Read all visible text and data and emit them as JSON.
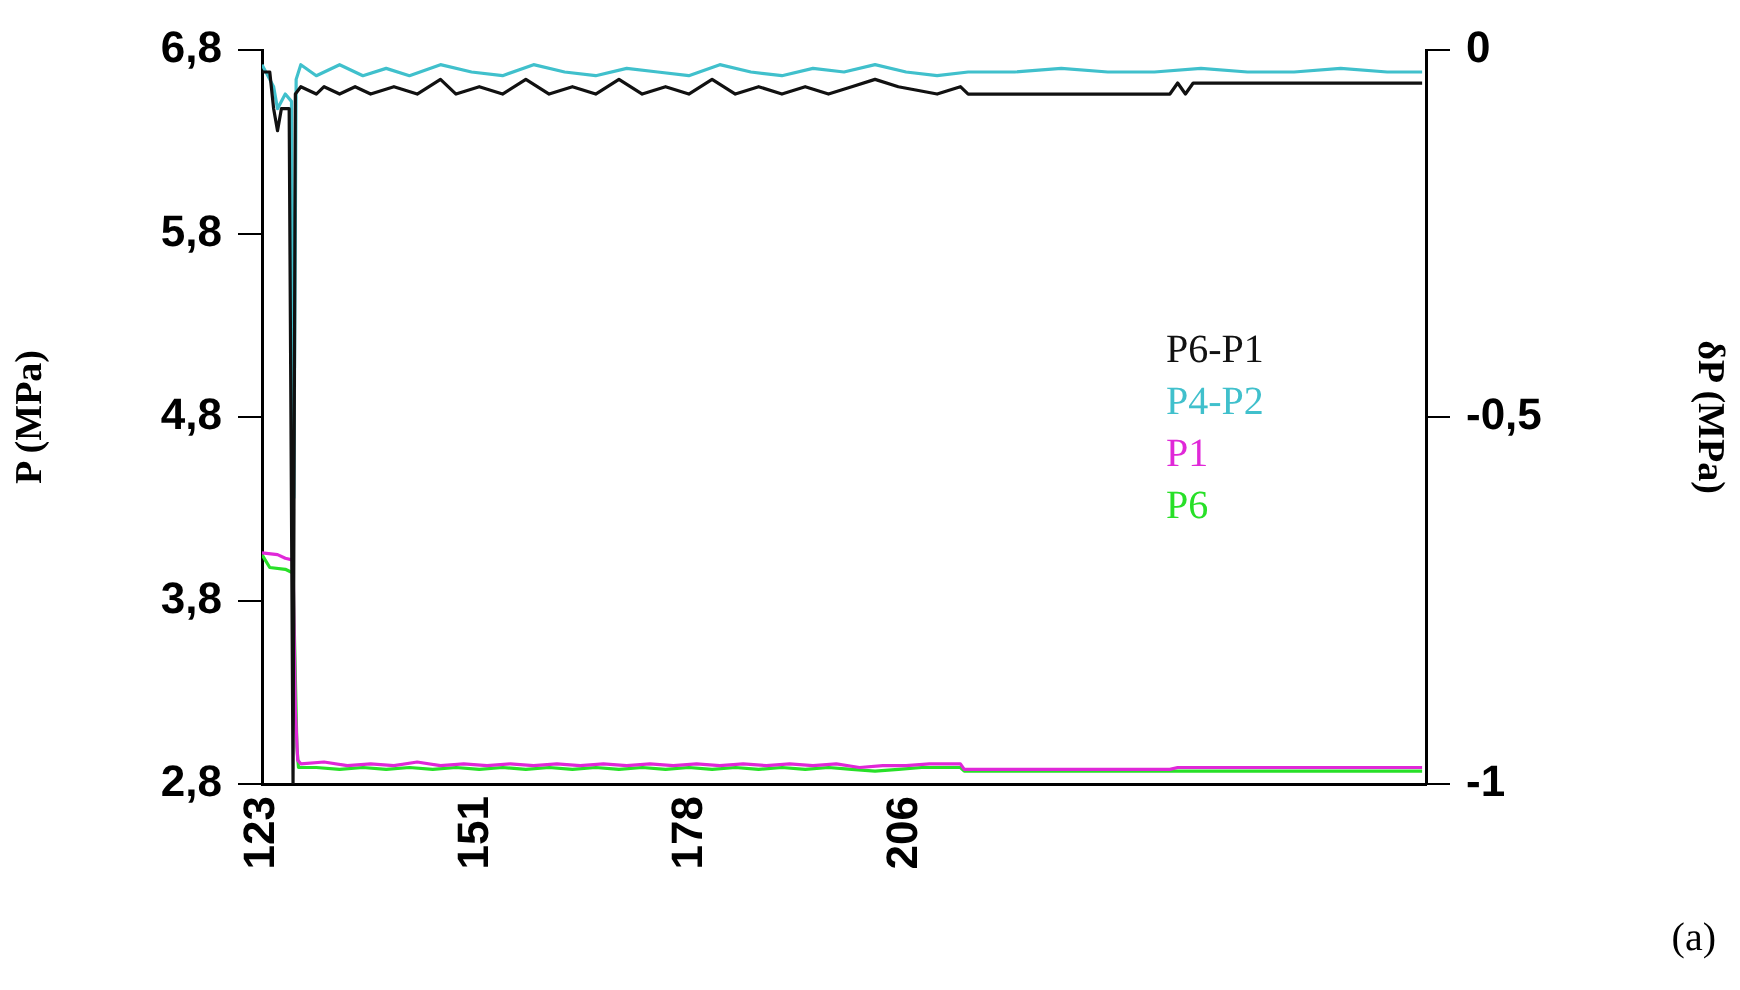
{
  "chart_data": {
    "type": "line",
    "ylabel": "P (MPa)",
    "y2label": "δP (MPa)",
    "xlim": [
      123,
      273
    ],
    "xticks": [
      123,
      {
        "value": 150.6,
        "label": "151"
      },
      {
        "value": 178.2,
        "label": "178"
      },
      {
        "value": 205.8,
        "label": "206"
      }
    ],
    "ylim": [
      2.8,
      6.8
    ],
    "yticks": [
      {
        "value": 2.8,
        "label": "2,8"
      },
      {
        "value": 3.8,
        "label": "3,8"
      },
      {
        "value": 4.8,
        "label": "4,8"
      },
      {
        "value": 5.8,
        "label": "5,8"
      },
      {
        "value": 6.8,
        "label": "6,8"
      }
    ],
    "y2lim": [
      -1,
      0
    ],
    "y2ticks": [
      -1,
      {
        "value": -0.5,
        "label": "-0,5"
      },
      0
    ],
    "grid": false,
    "legend": "right",
    "marker": "none",
    "line_style": "solid",
    "annotations": [
      "(a)"
    ],
    "series": [
      {
        "name": "P6-P1",
        "color": "#111111",
        "axis": "y2",
        "x": [
          123,
          124,
          124.5,
          125,
          125.5,
          126.5,
          127,
          127.3,
          128,
          130,
          131,
          133,
          135,
          137,
          140,
          143,
          146,
          148,
          151,
          154,
          157,
          160,
          163,
          166,
          169,
          172,
          175,
          178,
          181,
          184,
          187,
          190,
          193,
          196,
          199,
          202,
          205,
          210,
          213,
          214,
          240,
          241,
          242,
          243,
          272.5
        ],
        "values": [
          -0.03,
          -0.03,
          -0.08,
          -0.11,
          -0.08,
          -0.08,
          -1,
          -0.06,
          -0.05,
          -0.06,
          -0.05,
          -0.06,
          -0.05,
          -0.06,
          -0.05,
          -0.06,
          -0.04,
          -0.06,
          -0.05,
          -0.06,
          -0.04,
          -0.06,
          -0.05,
          -0.06,
          -0.04,
          -0.06,
          -0.05,
          -0.06,
          -0.04,
          -0.06,
          -0.05,
          -0.06,
          -0.05,
          -0.06,
          -0.05,
          -0.04,
          -0.05,
          -0.06,
          -0.05,
          -0.06,
          -0.06,
          -0.045,
          -0.06,
          -0.045,
          -0.045
        ]
      },
      {
        "name": "P4-P2",
        "color": "#40c0cc",
        "axis": "y2",
        "x": [
          123,
          124.5,
          125,
          126,
          126.8,
          127.1,
          127.4,
          128,
          130,
          133,
          136,
          139,
          142,
          146,
          150,
          154,
          158,
          162,
          166,
          170,
          174,
          178,
          182,
          186,
          190,
          194,
          198,
          202,
          206,
          210,
          214,
          220,
          226,
          232,
          238,
          244,
          250,
          256,
          262,
          268,
          272.5
        ],
        "values": [
          -0.02,
          -0.05,
          -0.08,
          -0.06,
          -0.07,
          -0.61,
          -0.04,
          -0.02,
          -0.035,
          -0.02,
          -0.035,
          -0.025,
          -0.035,
          -0.02,
          -0.03,
          -0.035,
          -0.02,
          -0.03,
          -0.035,
          -0.025,
          -0.03,
          -0.035,
          -0.02,
          -0.03,
          -0.035,
          -0.025,
          -0.03,
          -0.02,
          -0.03,
          -0.035,
          -0.03,
          -0.03,
          -0.025,
          -0.03,
          -0.03,
          -0.025,
          -0.03,
          -0.03,
          -0.025,
          -0.03,
          -0.03
        ]
      },
      {
        "name": "P1",
        "color": "#e028d8",
        "x": [
          123,
          125,
          126,
          127,
          127.3,
          127.6,
          128,
          131,
          134,
          137,
          140,
          143,
          146,
          149,
          152,
          155,
          158,
          161,
          164,
          167,
          170,
          173,
          176,
          179,
          182,
          185,
          188,
          191,
          194,
          197,
          200,
          203,
          206,
          209,
          213,
          213.5,
          240,
          241,
          272.5
        ],
        "values": [
          4.06,
          4.05,
          4.03,
          4.02,
          3.2,
          2.93,
          2.91,
          2.92,
          2.9,
          2.91,
          2.9,
          2.92,
          2.9,
          2.91,
          2.9,
          2.91,
          2.9,
          2.91,
          2.9,
          2.91,
          2.9,
          2.91,
          2.9,
          2.91,
          2.9,
          2.91,
          2.9,
          2.91,
          2.9,
          2.91,
          2.89,
          2.9,
          2.9,
          2.91,
          2.91,
          2.88,
          2.88,
          2.89,
          2.89
        ]
      },
      {
        "name": "P6",
        "color": "#28e028",
        "x": [
          123,
          124,
          126,
          127,
          127.5,
          127.7,
          130,
          133,
          136,
          139,
          142,
          145,
          148,
          151,
          154,
          157,
          160,
          163,
          166,
          169,
          172,
          175,
          178,
          181,
          184,
          187,
          190,
          193,
          196,
          199,
          202,
          205,
          208,
          213,
          213.5,
          272.5
        ],
        "values": [
          4.05,
          3.98,
          3.97,
          3.95,
          3,
          2.89,
          2.89,
          2.88,
          2.89,
          2.88,
          2.89,
          2.88,
          2.89,
          2.88,
          2.89,
          2.88,
          2.89,
          2.88,
          2.89,
          2.88,
          2.89,
          2.88,
          2.89,
          2.88,
          2.89,
          2.88,
          2.89,
          2.88,
          2.89,
          2.88,
          2.87,
          2.88,
          2.89,
          2.89,
          2.87,
          2.87
        ]
      }
    ]
  }
}
